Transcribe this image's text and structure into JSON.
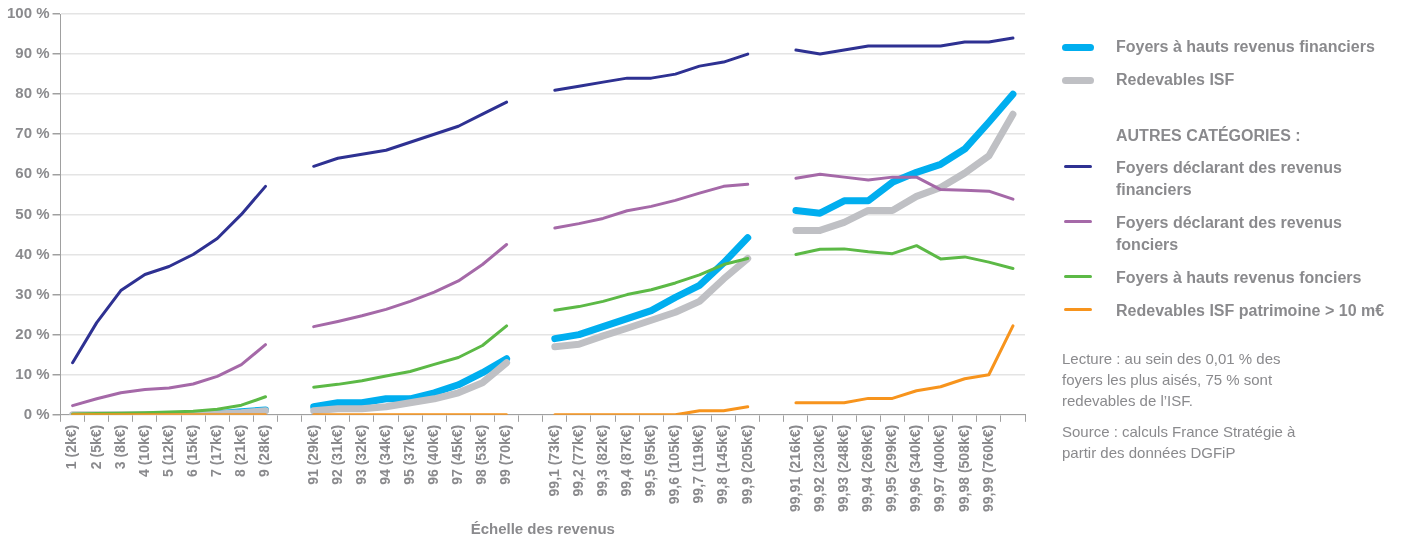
{
  "chart_data": {
    "type": "line",
    "xlabel": "Échelle des revenus",
    "categories": [
      "1 (2k€)",
      "2 (5k€)",
      "3 (8k€)",
      "4 (10k€)",
      "5 (12k€)",
      "6 (15k€)",
      "7 (17k€)",
      "8 (21k€)",
      "9 (28k€)",
      null,
      "91 (29k€)",
      "92 (31k€)",
      "93 (32k€)",
      "94 (34k€)",
      "95 (37k€)",
      "96 (40k€)",
      "97 (45k€)",
      "98 (53k€)",
      "99 (70k€)",
      null,
      "99,1 (73k€)",
      "99,2 (77k€)",
      "99,3 (82k€)",
      "99,4 (87k€)",
      "99,5 (95k€)",
      "99,6 (105k€)",
      "99,7 (119k€)",
      "99,8 (145k€)",
      "99,9 (205k€)",
      null,
      "99,91 (216k€)",
      "99,92 (230k€)",
      "99,93 (248k€)",
      "99,94 (269k€)",
      "99,95 (299k€)",
      "99,96 (340k€)",
      "99,97 (400k€)",
      "99,98 (508k€)",
      "99,99 (760k€)",
      null
    ],
    "series": [
      {
        "name": "Foyers à hauts revenus financiers",
        "color": "#00aeef",
        "values": [
          null,
          null,
          null,
          null,
          null,
          0,
          0.3,
          0.8,
          1.2,
          null,
          2,
          3,
          3,
          4,
          4,
          5.5,
          7.5,
          10.5,
          14,
          null,
          19,
          20,
          22,
          24,
          26,
          29.3,
          32.3,
          37.9,
          44.2,
          null,
          51,
          50.3,
          53.4,
          53.4,
          58,
          60.5,
          62.5,
          66.3,
          73,
          80
        ]
      },
      {
        "name": "Redevables ISF",
        "color": "#bfc0c4",
        "values": [
          0,
          0,
          0,
          0,
          0,
          0,
          0.2,
          0.5,
          1,
          null,
          1,
          1.5,
          1.5,
          2,
          3,
          4,
          5.5,
          8,
          13,
          null,
          17,
          17.6,
          19.7,
          21.6,
          23.6,
          25.6,
          28.3,
          33.9,
          39,
          null,
          46,
          46,
          48,
          51,
          51,
          54.5,
          56.7,
          60.3,
          64.6,
          75
        ]
      },
      {
        "name": "Foyers déclarant des revenus financiers",
        "color": "#2e3192",
        "values": [
          13,
          23,
          31,
          35,
          37,
          40,
          44,
          50,
          57,
          null,
          62,
          64,
          65,
          66,
          68,
          70,
          72,
          75,
          78,
          null,
          81,
          82,
          83,
          84,
          84,
          85,
          87,
          88,
          90,
          null,
          91,
          90,
          91,
          92,
          92,
          92,
          92,
          93,
          93,
          94
        ]
      },
      {
        "name": "Foyers déclarant des revenus fonciers",
        "color": "#a569a8",
        "values": [
          2.3,
          4,
          5.5,
          6.3,
          6.7,
          7.7,
          9.6,
          12.5,
          17.5,
          null,
          22,
          23.3,
          24.7,
          26.3,
          28.3,
          30.6,
          33.4,
          37.5,
          42.5,
          null,
          46.6,
          47.7,
          49,
          50.9,
          52,
          53.5,
          55.3,
          57,
          57.5,
          null,
          59,
          60,
          59.3,
          58.6,
          59.3,
          59.3,
          56.2,
          56,
          55.8,
          53.8
        ]
      },
      {
        "name": "Foyers à hauts revenus fonciers",
        "color": "#5cb946",
        "values": [
          0.2,
          0.3,
          0.4,
          0.5,
          0.7,
          0.9,
          1.4,
          2.4,
          4.5,
          null,
          6.9,
          7.6,
          8.5,
          9.7,
          10.8,
          12.6,
          14.3,
          17.3,
          22.2,
          null,
          26.1,
          27,
          28.3,
          30,
          31.2,
          32.9,
          34.9,
          37.5,
          39,
          null,
          40,
          41.3,
          41.4,
          40.7,
          40.2,
          42.2,
          38.9,
          39.4,
          38.1,
          36.5
        ]
      },
      {
        "name": "Redevables ISF patrimoine > 10 m€",
        "color": "#f7941d",
        "values": [
          0,
          0,
          0,
          0,
          0,
          0,
          0,
          0,
          0,
          null,
          0,
          0,
          0,
          0,
          0,
          0,
          0,
          0,
          0,
          null,
          0,
          0,
          0,
          0,
          0,
          0,
          1,
          1,
          2,
          null,
          3,
          3,
          3,
          4.1,
          4.1,
          6,
          7,
          9,
          10,
          22.2
        ]
      }
    ],
    "ylim": [
      0,
      100
    ],
    "yticks": [
      {
        "value": 0,
        "label": "0 %"
      },
      {
        "value": 10,
        "label": "10 %"
      },
      {
        "value": 20,
        "label": "20 %"
      },
      {
        "value": 30,
        "label": "30 %"
      },
      {
        "value": 40,
        "label": "40 %"
      },
      {
        "value": 50,
        "label": "50 %"
      },
      {
        "value": 60,
        "label": "60 %"
      },
      {
        "value": 70,
        "label": "70 %"
      },
      {
        "value": 80,
        "label": "80 %"
      },
      {
        "value": 90,
        "label": "90 %"
      },
      {
        "value": 100,
        "label": "100 %"
      }
    ],
    "grid": "y",
    "legend": "right",
    "legend_title": "AUTRES CATÉGORIES :",
    "marker": "none",
    "line_style": "solid",
    "annotations": [
      "Lecture : au sein des 0,01 % des foyers les plus aisés, 75 % sont redevables de l’ISF.",
      "Source : calculs France Stratégie à partir des données DGFiP"
    ]
  }
}
